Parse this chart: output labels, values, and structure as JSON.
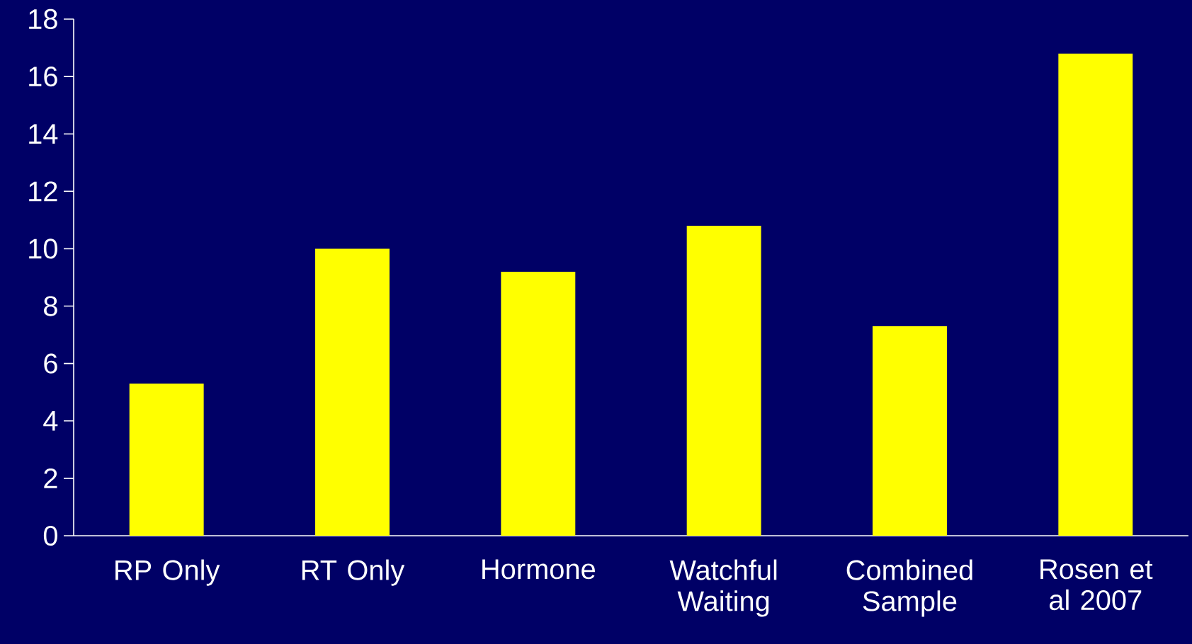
{
  "chart_data": {
    "type": "bar",
    "categories": [
      "RP Only",
      "RT Only",
      "Hormone",
      "Watchful Waiting",
      "Combined Sample",
      "Rosen et al 2007"
    ],
    "values": [
      5.3,
      10.0,
      9.2,
      10.8,
      7.3,
      16.8
    ],
    "color": "#ffff00",
    "ylim": [
      0,
      18
    ],
    "yticks": [
      0,
      2,
      4,
      6,
      8,
      10,
      12,
      14,
      16,
      18
    ],
    "grid": false
  }
}
